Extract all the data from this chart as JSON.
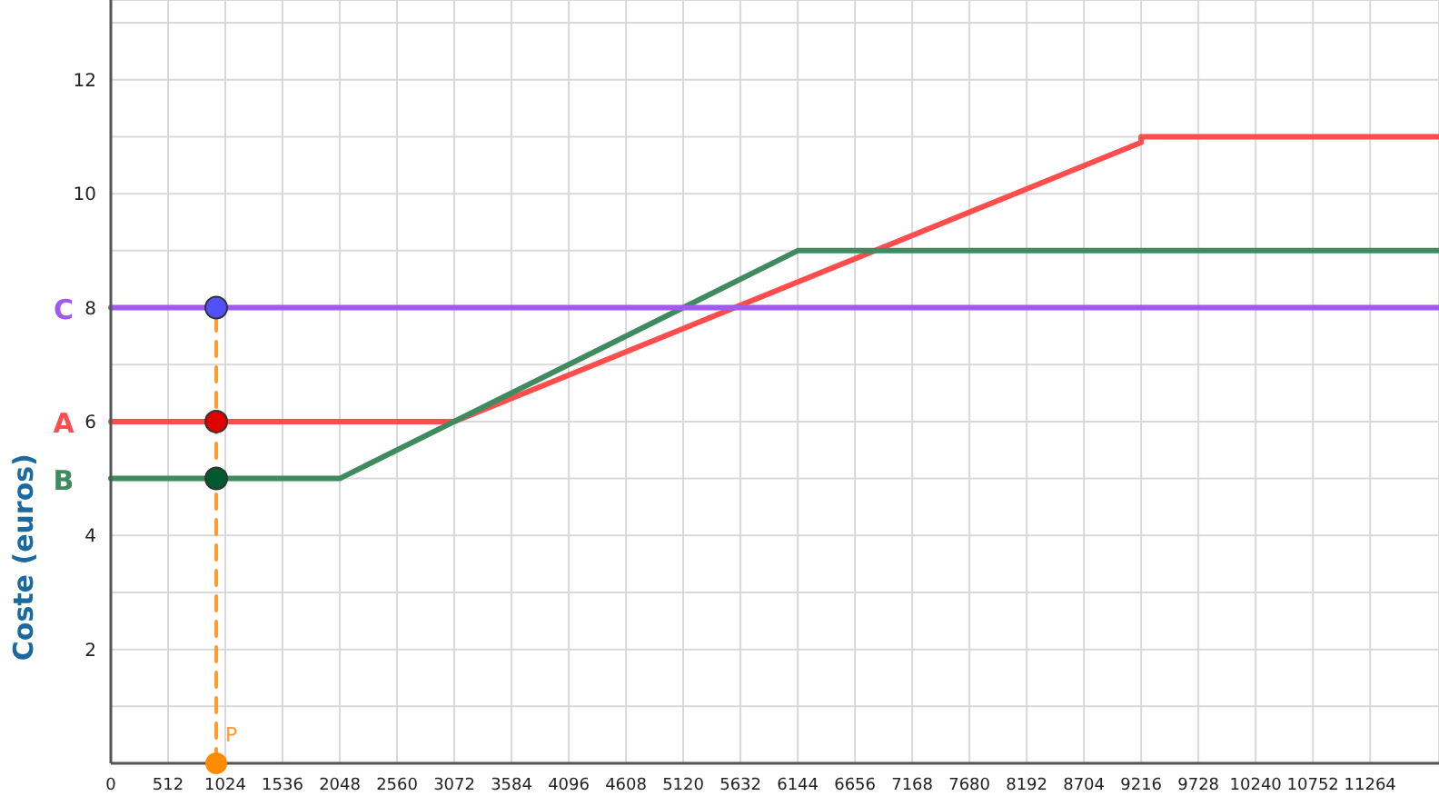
{
  "chart_data": {
    "type": "line",
    "ylabel": "Coste (euros)",
    "xlim": [
      0,
      11880
    ],
    "ylim": [
      0,
      13.4
    ],
    "xticks": [
      0,
      512,
      1024,
      1536,
      2048,
      2560,
      3072,
      3584,
      4096,
      4608,
      5120,
      5632,
      6144,
      6656,
      7168,
      7680,
      8192,
      8704,
      9216,
      9728,
      10240,
      10752,
      11264
    ],
    "yticks": [
      {
        "value": 1,
        "label": null
      },
      2,
      {
        "value": 3,
        "label": null
      },
      4,
      {
        "value": 5,
        "label": null
      },
      6,
      {
        "value": 7,
        "label": null
      },
      8,
      {
        "value": 9,
        "label": null
      },
      10,
      {
        "value": 11,
        "label": null
      },
      12,
      {
        "value": 13,
        "label": null
      }
    ],
    "grid": true,
    "marker": "none",
    "line_style": "solid",
    "series": [
      {
        "name": "A",
        "color": "#ff4d4d",
        "x": [
          0,
          3072,
          9216,
          9216,
          11880
        ],
        "values": [
          6,
          6,
          10.9,
          11,
          11
        ]
      },
      {
        "name": "B",
        "color": "#3f8a5e",
        "x": [
          0,
          2048,
          6144,
          11880
        ],
        "values": [
          5,
          5,
          9,
          9
        ]
      },
      {
        "name": "C",
        "color": "#a259f0",
        "x": [
          0,
          11880
        ],
        "values": [
          8,
          8
        ]
      },
      {
        "name": "P",
        "color": "#ff9a2e",
        "line_style": "dashed",
        "x": [
          943,
          943
        ],
        "values": [
          0,
          8
        ]
      },
      {
        "type": "scatter",
        "marker": "circle",
        "x": [
          943,
          943,
          943,
          943
        ],
        "values": [
          8,
          6,
          5,
          0
        ],
        "colors": [
          "#5050ff",
          "#e00000",
          "#005a2e",
          "#ff8c00"
        ]
      }
    ]
  }
}
